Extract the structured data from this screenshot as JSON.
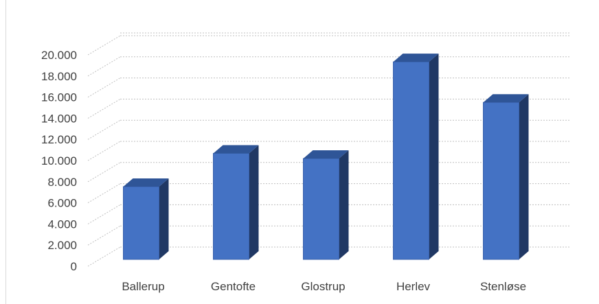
{
  "chart_data": {
    "type": "bar",
    "categories": [
      "Ballerup",
      "Gentofte",
      "Glostrup",
      "Herlev",
      "Stenløse"
    ],
    "values": [
      7000,
      10200,
      9700,
      19000,
      15100
    ],
    "ylim": [
      0,
      20000
    ],
    "y_ticks": [
      0,
      2000,
      4000,
      6000,
      8000,
      10000,
      12000,
      14000,
      16000,
      18000,
      20000
    ],
    "y_tick_labels": [
      "0",
      "2.000",
      "4.000",
      "6.000",
      "8.000",
      "10.000",
      "12.000",
      "14.000",
      "16.000",
      "18.000",
      "20.000"
    ],
    "grid": true,
    "style": "3d-column",
    "colors": {
      "bar_front": "#4472c4",
      "bar_top": "#2f5597",
      "bar_side": "#203864",
      "grid": "#bfbfbf",
      "text": "#404040"
    }
  }
}
